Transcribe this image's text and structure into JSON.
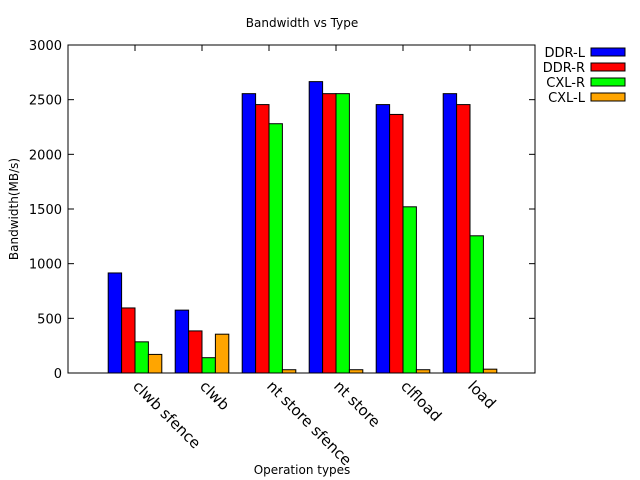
{
  "chart_data": {
    "type": "bar",
    "title": "Bandwidth vs Type",
    "xlabel": "Operation types",
    "ylabel": "Bandwidth(MB/s)",
    "ylim": [
      0,
      3000
    ],
    "yticks": [
      0,
      500,
      1000,
      1500,
      2000,
      2500,
      3000
    ],
    "categories": [
      "clwb sfence",
      "clwb",
      "nt store sfence",
      "nt store",
      "clfload",
      "load"
    ],
    "series": [
      {
        "name": "DDR-L",
        "color": "#0000ff",
        "values": [
          915,
          575,
          2555,
          2665,
          2455,
          2555
        ]
      },
      {
        "name": "DDR-R",
        "color": "#ff0000",
        "values": [
          595,
          385,
          2455,
          2555,
          2365,
          2455
        ]
      },
      {
        "name": "CXL-R",
        "color": "#00ff00",
        "values": [
          285,
          140,
          2280,
          2555,
          1520,
          1255
        ]
      },
      {
        "name": "CXL-L",
        "color": "#ffa500",
        "values": [
          170,
          355,
          30,
          30,
          30,
          35
        ]
      }
    ],
    "legend_position": "top-right",
    "grid": false
  }
}
